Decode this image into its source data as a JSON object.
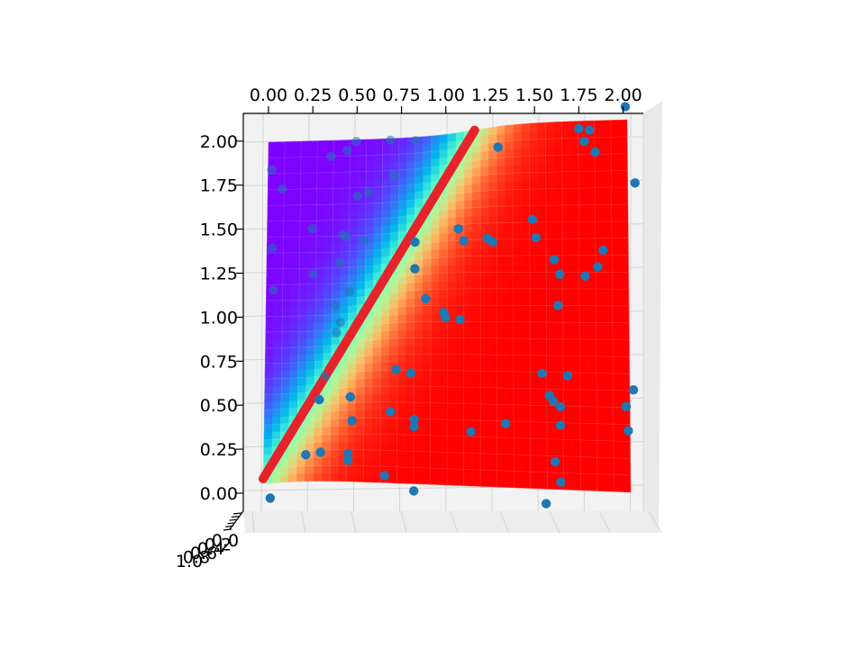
{
  "chart_data": {
    "type": "scatter",
    "kind": "3d-surface-with-scatter",
    "view": "top-down (elevation ~90deg)",
    "xlim": [
      0,
      2
    ],
    "ylim": [
      0,
      2
    ],
    "zlim": [
      0,
      1
    ],
    "x_ticks": [
      "0.00",
      "0.25",
      "0.50",
      "0.75",
      "1.00",
      "1.25",
      "1.50",
      "1.75",
      "2.00"
    ],
    "y_ticks": [
      "0.00",
      "0.25",
      "0.50",
      "0.75",
      "1.00",
      "1.25",
      "1.50",
      "1.75",
      "2.00"
    ],
    "z_ticks": [
      "0.0",
      "0.2",
      "0.4",
      "0.6",
      "0.8",
      "1.0"
    ],
    "surface": {
      "colormap": "rainbow",
      "description": "sigmoid-like surface rising across the line y = 1.76x"
    },
    "decision_line": {
      "color": "#e8222a",
      "x": [
        0.0,
        1.15
      ],
      "y": [
        0.0,
        2.02
      ]
    },
    "points": {
      "color": "#1f77b4",
      "x": [
        1.99,
        2.04,
        1.73,
        1.79,
        1.76,
        1.82,
        1.86,
        1.83,
        1.76,
        1.62,
        1.61,
        1.47,
        1.49,
        1.59,
        1.52,
        1.66,
        1.62,
        1.62,
        1.56,
        1.58,
        1.59,
        1.62,
        1.54,
        2.02,
        1.98,
        1.99,
        1.28,
        1.22,
        1.06,
        1.09,
        1.25,
        0.98,
        0.82,
        0.82,
        0.88,
        0.99,
        1.07,
        0.72,
        0.8,
        0.69,
        0.82,
        0.82,
        0.47,
        0.48,
        0.46,
        0.23,
        0.46,
        0.66,
        0.82,
        1.13,
        1.32,
        0.04,
        0.31,
        0.49,
        0.68,
        0.82,
        0.44,
        0.35,
        0.5,
        0.42,
        0.25,
        0.26,
        0.02,
        0.08,
        0.03,
        0.04,
        0.7,
        0.56,
        0.54,
        0.44,
        0.4,
        0.46,
        0.38,
        0.41,
        0.39,
        0.33,
        0.3
      ],
      "y": [
        2.07,
        1.66,
        1.96,
        1.95,
        1.89,
        1.83,
        1.3,
        1.21,
        1.16,
        1.17,
        1.0,
        1.47,
        1.37,
        1.25,
        0.63,
        0.62,
        0.45,
        0.35,
        0.51,
        0.48,
        0.15,
        0.04,
        -0.08,
        0.55,
        0.46,
        0.33,
        1.88,
        1.37,
        1.43,
        1.36,
        1.35,
        0.96,
        1.38,
        1.22,
        1.04,
        0.93,
        0.92,
        0.64,
        0.62,
        0.4,
        0.36,
        0.32,
        0.49,
        0.35,
        0.16,
        0.16,
        0.12,
        0.04,
        -0.04,
        0.3,
        0.35,
        -0.09,
        0.17,
        1.99,
        1.99,
        1.98,
        1.94,
        1.91,
        1.68,
        1.46,
        1.5,
        1.24,
        1.84,
        1.73,
        1.39,
        1.15,
        1.79,
        1.7,
        1.42,
        1.45,
        1.3,
        1.13,
        1.05,
        0.95,
        0.89,
        0.63,
        0.49
      ]
    }
  }
}
